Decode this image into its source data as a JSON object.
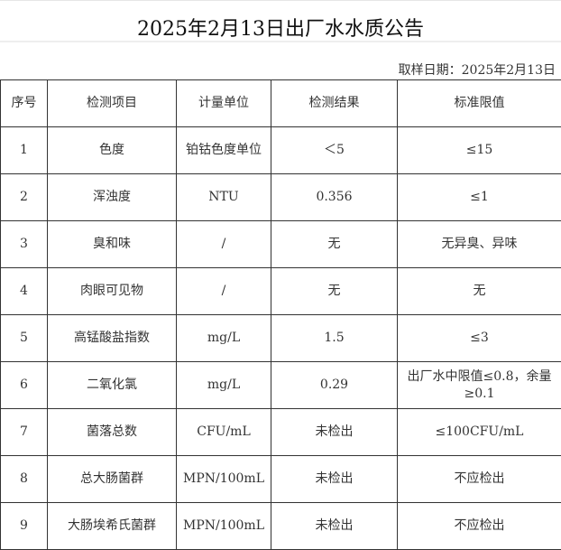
{
  "title": "2025年2月13日出厂水水质公告",
  "sampling_date": "取样日期：2025年2月13日",
  "headers": [
    "序号",
    "检测项目",
    "计量单位",
    "检测结果",
    "标准限值"
  ],
  "rows": [
    [
      "1",
      "色度",
      "铂钴色度单位",
      "＜5",
      "≤15"
    ],
    [
      "2",
      "浑浊度",
      "NTU",
      "0.356",
      "≤1"
    ],
    [
      "3",
      "臭和味",
      "/",
      "无",
      "无异臭、异味"
    ],
    [
      "4",
      "肉眼可见物",
      "/",
      "无",
      "无"
    ],
    [
      "5",
      "高锰酸盐指数",
      "mg/L",
      "1.5",
      "≤3"
    ],
    [
      "6",
      "二氧化氯",
      "mg/L",
      "0.29",
      "出厂水中限值≤0.8，余量≥0.1"
    ],
    [
      "7",
      "菌落总数",
      "CFU/mL",
      "未检出",
      "≤100CFU/mL"
    ],
    [
      "8",
      "总大肠菌群",
      "MPN/100mL",
      "未检出",
      "不应检出"
    ],
    [
      "9",
      "大肠埃希氏菌群",
      "MPN/100mL",
      "未检出",
      "不应检出"
    ]
  ]
}
